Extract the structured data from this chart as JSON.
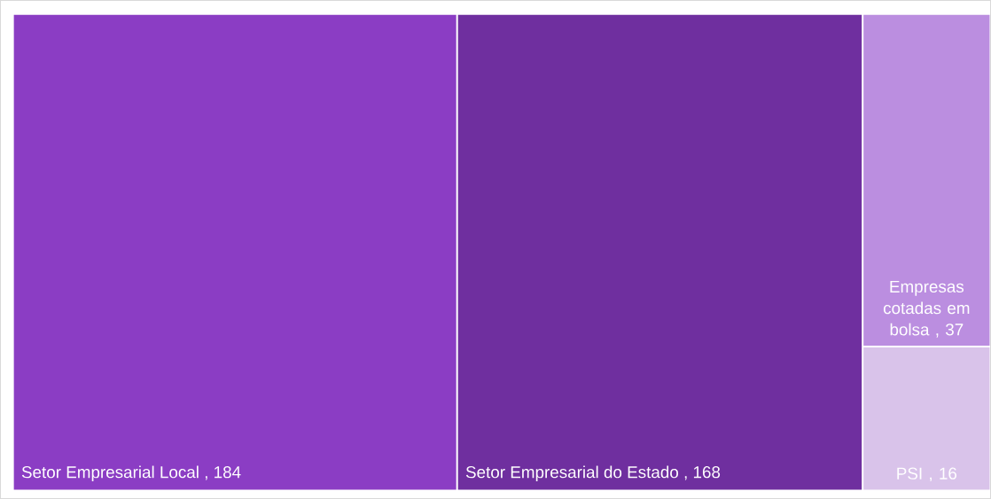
{
  "chart_data": {
    "type": "other",
    "categories": [
      "Setor Empresarial Local",
      "Setor Empresarial do Estado",
      "Empresas cotadas em bolsa",
      "PSI"
    ],
    "values": [
      184,
      168,
      37,
      16
    ],
    "colors": [
      "#8b3dc4",
      "#6f2f9f",
      "#bb8ee0",
      "#d9c3ea"
    ],
    "value_labels": [
      ", 184",
      ", 168",
      ", 37",
      ", 16"
    ]
  }
}
